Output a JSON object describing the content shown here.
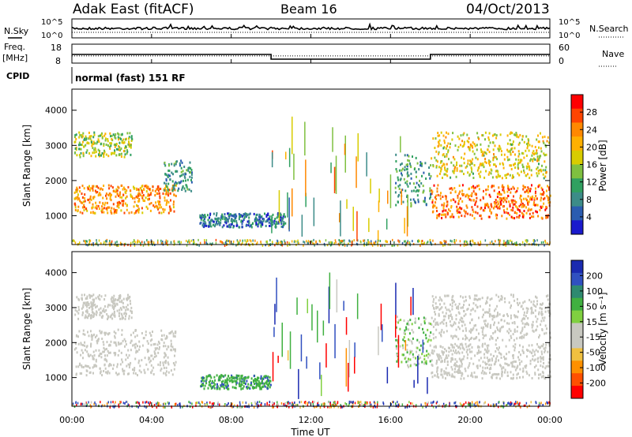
{
  "header": {
    "station": "Adak East (fitACF)",
    "beam": "Beam 16",
    "date": "04/Oct/2013"
  },
  "panels": {
    "nsky_label": "N.Sky",
    "nsearch_label": "N.Search",
    "freq_label_1": "Freq.",
    "freq_label_2": "[MHz]",
    "nave_label": "Nave",
    "cpid_label": "CPID",
    "cpid_text": "normal (fast) 151 RF",
    "noise_left_ticks": [
      "10^5",
      "10^0"
    ],
    "noise_right_ticks": [
      "10^5",
      "10^0"
    ],
    "freq_ticks": [
      "18",
      "8"
    ],
    "nave_ticks": [
      "60",
      "0"
    ]
  },
  "power_colorbar": {
    "label": "Power [dB]",
    "ticks": [
      "28",
      "24",
      "20",
      "16",
      "12",
      "8",
      "4"
    ],
    "colors": [
      "#ff0000",
      "#ff4400",
      "#ff8800",
      "#ffb000",
      "#d8cc00",
      "#7fc040",
      "#30a060",
      "#3c8c88",
      "#2a5cb0",
      "#1a1acc"
    ]
  },
  "velocity_colorbar": {
    "label": "Velocity [m s⁻¹]",
    "ticks": [
      "200",
      "100",
      "50",
      "15",
      "-15",
      "-50",
      "-100",
      "-200"
    ],
    "colors": [
      "#1a2ab0",
      "#3050c0",
      "#2e8a70",
      "#40b040",
      "#80d040",
      "#c8c8c0",
      "#c8c8c0",
      "#f0c040",
      "#ff9000",
      "#ff5000",
      "#ff0000"
    ]
  },
  "chart_data": {
    "type": "heatmap",
    "x_label": "Time UT",
    "x_ticks": [
      "00:00",
      "04:00",
      "08:00",
      "12:00",
      "16:00",
      "20:00",
      "00:00"
    ],
    "y_label": "Slant Range [km]",
    "y_ticks": [
      1000,
      2000,
      3000,
      4000
    ],
    "ylim": [
      180,
      4600
    ],
    "xlim_hours": [
      0,
      24
    ],
    "power_regions": [
      {
        "name": "morning-main",
        "t": [
          0.1,
          5.2
        ],
        "r": [
          1100,
          1900
        ],
        "db": 24
      },
      {
        "name": "morning-upper",
        "t": [
          0.1,
          3.0
        ],
        "r": [
          2700,
          3400
        ],
        "db": 16
      },
      {
        "name": "morning-tail",
        "t": [
          4.6,
          6.0
        ],
        "r": [
          1700,
          2600
        ],
        "db": 8
      },
      {
        "name": "daytime-patch",
        "t": [
          6.4,
          10.7
        ],
        "r": [
          700,
          1100
        ],
        "db": 6
      },
      {
        "name": "evening-main",
        "t": [
          18.0,
          24.0
        ],
        "r": [
          950,
          1900
        ],
        "db": 26
      },
      {
        "name": "evening-upper",
        "t": [
          18.0,
          24.0
        ],
        "r": [
          2100,
          3400
        ],
        "db": 18
      },
      {
        "name": "evening-ramp",
        "t": [
          16.2,
          18.0
        ],
        "r": [
          1300,
          2800
        ],
        "db": 10
      }
    ],
    "velocity_regions": [
      {
        "name": "morning-main",
        "t": [
          0.1,
          5.2
        ],
        "r": [
          1100,
          2400
        ],
        "v": 0
      },
      {
        "name": "morning-upper",
        "t": [
          0.1,
          3.0
        ],
        "r": [
          2700,
          3400
        ],
        "v": 0
      },
      {
        "name": "daytime-patch",
        "t": [
          6.4,
          10.0
        ],
        "r": [
          700,
          1100
        ],
        "v": 60
      },
      {
        "name": "evening-main",
        "t": [
          18.0,
          24.0
        ],
        "r": [
          1000,
          2000
        ],
        "v": 0
      },
      {
        "name": "evening-upper",
        "t": [
          18.0,
          24.0
        ],
        "r": [
          2100,
          3400
        ],
        "v": 0
      },
      {
        "name": "evening-ramp",
        "t": [
          16.2,
          18.0
        ],
        "r": [
          1300,
          2800
        ],
        "v": 20
      }
    ],
    "noise_sky": "flat near 10^3",
    "frequency_mhz": [
      {
        "t": [
          0,
          10
        ],
        "f": 13
      },
      {
        "t": [
          10,
          18
        ],
        "f": 10
      },
      {
        "t": [
          18,
          24
        ],
        "f": 13
      }
    ],
    "nave": 22
  }
}
